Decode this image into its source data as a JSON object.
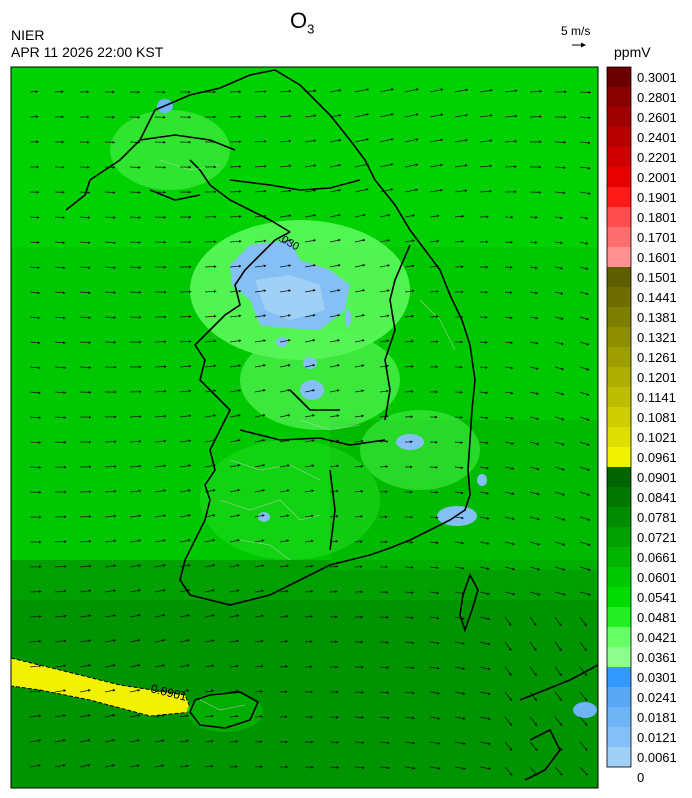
{
  "header": {
    "agency": "NIER",
    "datetime": "APR 11 2026 22:00 KST",
    "title_main": "O",
    "title_sub": "3",
    "vector_scale_label": "5 m/s",
    "unit": "ppmV"
  },
  "map": {
    "contour_labels": [
      "0.0901",
      ".030"
    ]
  },
  "colorbar": {
    "labels": [
      "0.3001",
      "0.2801",
      "0.2601",
      "0.2401",
      "0.2201",
      "0.2001",
      "0.1901",
      "0.1801",
      "0.1701",
      "0.1601",
      "0.1501",
      "0.1441",
      "0.1381",
      "0.1321",
      "0.1261",
      "0.1201",
      "0.1141",
      "0.1081",
      "0.1021",
      "0.0961",
      "0.0901",
      "0.0841",
      "0.0781",
      "0.0721",
      "0.0661",
      "0.0601",
      "0.0541",
      "0.0481",
      "0.0421",
      "0.0361",
      "0.0301",
      "0.0241",
      "0.0181",
      "0.0121",
      "0.0061",
      "0"
    ],
    "colors": [
      "#6b0000",
      "#880000",
      "#a00000",
      "#b80000",
      "#d00000",
      "#e80000",
      "#ff1a1a",
      "#ff4d4d",
      "#ff6e6e",
      "#ff9191",
      "#5e5e00",
      "#6e6e00",
      "#7e7e00",
      "#8e8e00",
      "#9e9e00",
      "#aeae00",
      "#bebe00",
      "#cece00",
      "#dede00",
      "#f2f200",
      "#006400",
      "#007800",
      "#008c00",
      "#00a000",
      "#00b400",
      "#00c800",
      "#00dc00",
      "#22f022",
      "#66ff66",
      "#8cff8c",
      "#3399ff",
      "#5aa8f5",
      "#6fb4f5",
      "#84c0f5",
      "#a0d0f5"
    ]
  }
}
